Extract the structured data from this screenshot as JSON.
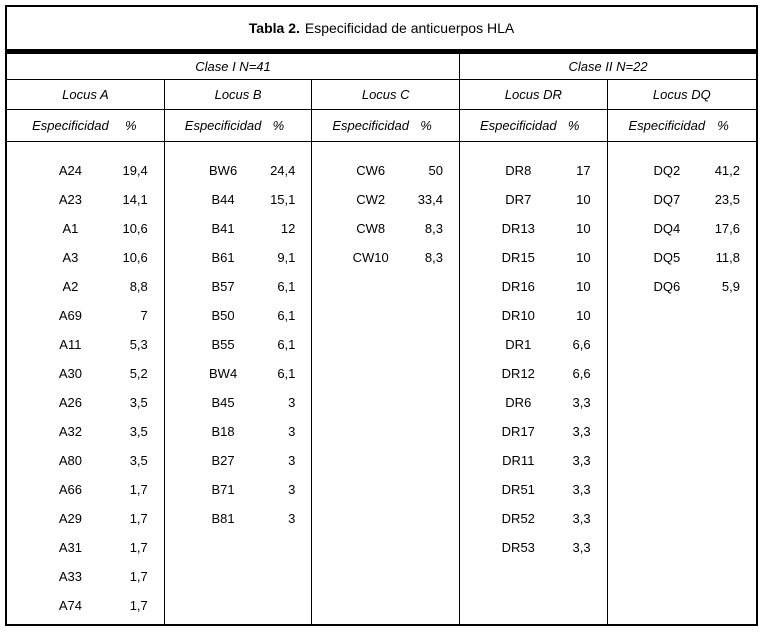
{
  "title": {
    "prefix": "Tabla 2.",
    "text": "Especificidad de anticuerpos HLA"
  },
  "column_headers": {
    "especificidad": "Especificidad",
    "percent": "%"
  },
  "groups": [
    {
      "label": "Clase I N=41",
      "loci": [
        {
          "name": "Locus A",
          "rows": [
            {
              "especificidad": "A24",
              "pct": "19,4"
            },
            {
              "especificidad": "A23",
              "pct": "14,1"
            },
            {
              "especificidad": "A1",
              "pct": "10,6"
            },
            {
              "especificidad": "A3",
              "pct": "10,6"
            },
            {
              "especificidad": "A2",
              "pct": "8,8"
            },
            {
              "especificidad": "A69",
              "pct": "7"
            },
            {
              "especificidad": "A11",
              "pct": "5,3"
            },
            {
              "especificidad": "A30",
              "pct": "5,2"
            },
            {
              "especificidad": "A26",
              "pct": "3,5"
            },
            {
              "especificidad": "A32",
              "pct": "3,5"
            },
            {
              "especificidad": "A80",
              "pct": "3,5"
            },
            {
              "especificidad": "A66",
              "pct": "1,7"
            },
            {
              "especificidad": "A29",
              "pct": "1,7"
            },
            {
              "especificidad": "A31",
              "pct": "1,7"
            },
            {
              "especificidad": "A33",
              "pct": "1,7"
            },
            {
              "especificidad": "A74",
              "pct": "1,7"
            }
          ]
        },
        {
          "name": "Locus B",
          "rows": [
            {
              "especificidad": "BW6",
              "pct": "24,4"
            },
            {
              "especificidad": "B44",
              "pct": "15,1"
            },
            {
              "especificidad": "B41",
              "pct": "12"
            },
            {
              "especificidad": "B61",
              "pct": "9,1"
            },
            {
              "especificidad": "B57",
              "pct": "6,1"
            },
            {
              "especificidad": "B50",
              "pct": "6,1"
            },
            {
              "especificidad": "B55",
              "pct": "6,1"
            },
            {
              "especificidad": "BW4",
              "pct": "6,1"
            },
            {
              "especificidad": "B45",
              "pct": "3"
            },
            {
              "especificidad": "B18",
              "pct": "3"
            },
            {
              "especificidad": "B27",
              "pct": "3"
            },
            {
              "especificidad": "B71",
              "pct": "3"
            },
            {
              "especificidad": "B81",
              "pct": "3"
            }
          ]
        },
        {
          "name": "Locus C",
          "rows": [
            {
              "especificidad": "CW6",
              "pct": "50"
            },
            {
              "especificidad": "CW2",
              "pct": "33,4"
            },
            {
              "especificidad": "CW8",
              "pct": "8,3"
            },
            {
              "especificidad": "CW10",
              "pct": "8,3"
            }
          ]
        }
      ]
    },
    {
      "label": "Clase II N=22",
      "loci": [
        {
          "name": "Locus DR",
          "rows": [
            {
              "especificidad": "DR8",
              "pct": "17"
            },
            {
              "especificidad": "DR7",
              "pct": "10"
            },
            {
              "especificidad": "DR13",
              "pct": "10"
            },
            {
              "especificidad": "DR15",
              "pct": "10"
            },
            {
              "especificidad": "DR16",
              "pct": "10"
            },
            {
              "especificidad": "DR10",
              "pct": "10"
            },
            {
              "especificidad": "DR1",
              "pct": "6,6"
            },
            {
              "especificidad": "DR12",
              "pct": "6,6"
            },
            {
              "especificidad": "DR6",
              "pct": "3,3"
            },
            {
              "especificidad": "DR17",
              "pct": "3,3"
            },
            {
              "especificidad": "DR11",
              "pct": "3,3"
            },
            {
              "especificidad": "DR51",
              "pct": "3,3"
            },
            {
              "especificidad": "DR52",
              "pct": "3,3"
            },
            {
              "especificidad": "DR53",
              "pct": "3,3"
            }
          ]
        },
        {
          "name": "Locus DQ",
          "rows": [
            {
              "especificidad": "DQ2",
              "pct": "41,2"
            },
            {
              "especificidad": "DQ7",
              "pct": "23,5"
            },
            {
              "especificidad": "DQ4",
              "pct": "17,6"
            },
            {
              "especificidad": "DQ5",
              "pct": "11,8"
            },
            {
              "especificidad": "DQ6",
              "pct": "5,9"
            }
          ]
        }
      ]
    }
  ]
}
